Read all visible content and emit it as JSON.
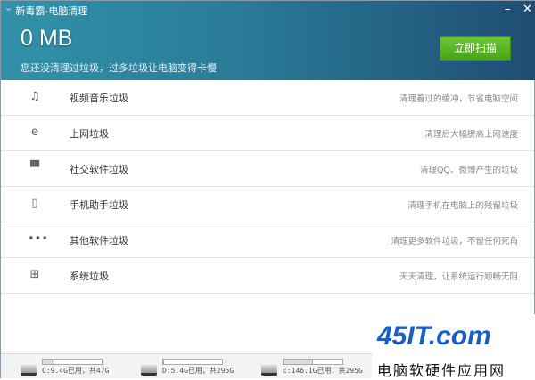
{
  "window": {
    "title": "新毒霸-电脑清理",
    "minimize": "–",
    "close": "✕"
  },
  "header": {
    "size": "0 MB",
    "subtitle": "您还没清理过垃圾，过多垃圾让电脑变得卡慢",
    "scan_button": "立即扫描"
  },
  "items": [
    {
      "icon": "music-note-icon",
      "glyph": "♫",
      "label": "视频音乐垃圾",
      "desc": "清理看过的缓冲，节省电脑空间"
    },
    {
      "icon": "ie-browser-icon",
      "glyph": "e",
      "label": "上网垃圾",
      "desc": "清理后大幅提高上网速度"
    },
    {
      "icon": "chat-bubble-icon",
      "glyph": "▀",
      "label": "社交软件垃圾",
      "desc": "清理QQ、微博产生的垃圾"
    },
    {
      "icon": "phone-icon",
      "glyph": "▯",
      "label": "手机助手垃圾",
      "desc": "清理手机在电脑上的残留垃圾"
    },
    {
      "icon": "more-dots-icon",
      "glyph": "•••",
      "label": "其他软件垃圾",
      "desc": "清理更多软件垃圾，不留任何死角"
    },
    {
      "icon": "windows-icon",
      "glyph": "⊞",
      "label": "系统垃圾",
      "desc": "天天清理，让系统运行顺畅无阻"
    }
  ],
  "drives": [
    {
      "label": "C:9.4G已用，共47G",
      "used_fraction": 0.2
    },
    {
      "label": "D:5.4G已用，共295G",
      "used_fraction": 0.02
    },
    {
      "label": "E:146.1G已用，共295G",
      "used_fraction": 0.5
    }
  ],
  "watermark": {
    "logo": "45IT.com",
    "text": "电脑软硬件应用网"
  }
}
